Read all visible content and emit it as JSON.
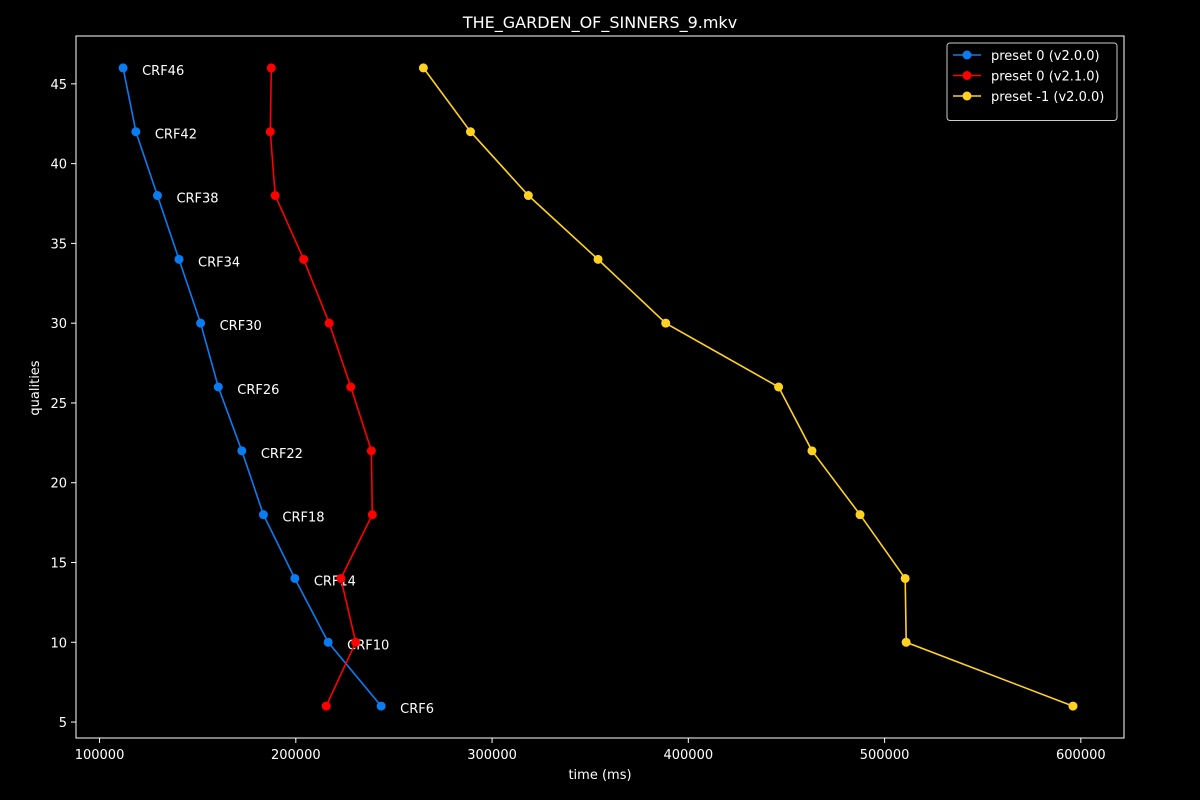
{
  "chart_data": {
    "type": "line",
    "title": "THE_GARDEN_OF_SINNERS_9.mkv",
    "xlabel": "time (ms)",
    "ylabel": "qualities",
    "xlim": [
      88000,
      622000
    ],
    "ylim": [
      4,
      48
    ],
    "xticks": [
      100000,
      200000,
      300000,
      400000,
      500000,
      600000
    ],
    "xtick_labels": [
      "100000",
      "200000",
      "300000",
      "400000",
      "500000",
      "600000"
    ],
    "yticks": [
      5,
      10,
      15,
      20,
      25,
      30,
      35,
      40,
      45
    ],
    "ytick_labels": [
      "5",
      "10",
      "15",
      "20",
      "25",
      "30",
      "35",
      "40",
      "45"
    ],
    "grid": false,
    "legend_position": "top-right",
    "series": [
      {
        "name": "preset 0 (v2.0.0)",
        "color": "#0a7cf2",
        "points": [
          {
            "x": 112000,
            "y": 46,
            "label": "CRF46"
          },
          {
            "x": 118500,
            "y": 42,
            "label": "CRF42"
          },
          {
            "x": 129500,
            "y": 38,
            "label": "CRF38"
          },
          {
            "x": 140500,
            "y": 34,
            "label": "CRF34"
          },
          {
            "x": 151500,
            "y": 30,
            "label": "CRF30"
          },
          {
            "x": 160500,
            "y": 26,
            "label": "CRF26"
          },
          {
            "x": 172500,
            "y": 22,
            "label": "CRF22"
          },
          {
            "x": 183500,
            "y": 18,
            "label": "CRF18"
          },
          {
            "x": 199500,
            "y": 14,
            "label": "CRF14"
          },
          {
            "x": 216500,
            "y": 10,
            "label": "CRF10"
          },
          {
            "x": 243500,
            "y": 6,
            "label": "CRF6"
          }
        ]
      },
      {
        "name": "preset 0 (v2.1.0)",
        "color": "#ff0000",
        "points": [
          {
            "x": 187500,
            "y": 46
          },
          {
            "x": 187000,
            "y": 42
          },
          {
            "x": 189500,
            "y": 38
          },
          {
            "x": 204000,
            "y": 34
          },
          {
            "x": 217000,
            "y": 30
          },
          {
            "x": 228000,
            "y": 26
          },
          {
            "x": 238500,
            "y": 22
          },
          {
            "x": 239000,
            "y": 18
          },
          {
            "x": 223000,
            "y": 14
          },
          {
            "x": 230500,
            "y": 10
          },
          {
            "x": 215500,
            "y": 6
          }
        ]
      },
      {
        "name": "preset -1 (v2.0.0)",
        "color": "#ffd21f",
        "points": [
          {
            "x": 265000,
            "y": 46
          },
          {
            "x": 289000,
            "y": 42
          },
          {
            "x": 318500,
            "y": 38
          },
          {
            "x": 354000,
            "y": 34
          },
          {
            "x": 388500,
            "y": 30
          },
          {
            "x": 446000,
            "y": 26
          },
          {
            "x": 463000,
            "y": 22
          },
          {
            "x": 487500,
            "y": 18
          },
          {
            "x": 510500,
            "y": 14
          },
          {
            "x": 511000,
            "y": 10
          },
          {
            "x": 596000,
            "y": 6
          }
        ]
      }
    ]
  }
}
